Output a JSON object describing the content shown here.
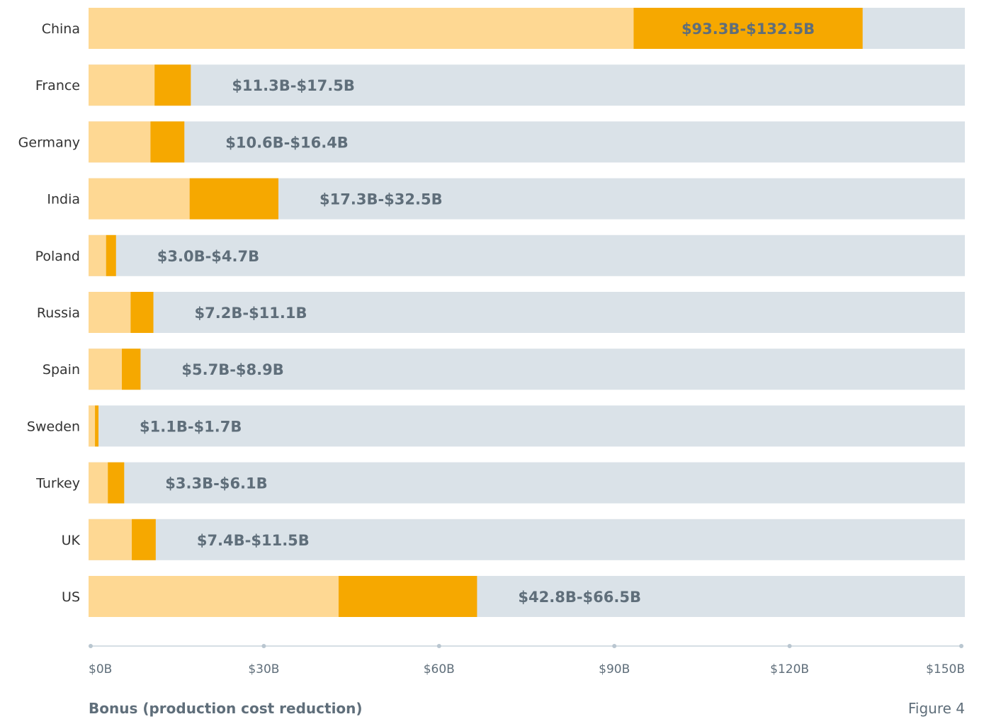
{
  "chart_data": {
    "type": "bar",
    "orientation": "horizontal",
    "stacked": true,
    "categories": [
      "China",
      "France",
      "Germany",
      "India",
      "Poland",
      "Russia",
      "Spain",
      "Sweden",
      "Turkey",
      "UK",
      "US"
    ],
    "series": [
      {
        "values": [
          93.3,
          11.3,
          10.6,
          17.3,
          3.0,
          7.2,
          5.7,
          1.1,
          3.3,
          7.4,
          42.8
        ],
        "color": "#fed893"
      },
      {
        "values": [
          39.2,
          6.2,
          5.8,
          15.2,
          1.7,
          3.9,
          3.2,
          0.6,
          2.8,
          4.1,
          23.7
        ],
        "color": "#f6a800"
      }
    ],
    "labels": [
      "$93.3B-$132.5B",
      "$11.3B-$17.5B",
      "$10.6B-$16.4B",
      "$17.3B-$32.5B",
      "$3.0B-$4.7B",
      "$7.2B-$11.1B",
      "$5.7B-$8.9B",
      "$1.1B-$1.7B",
      "$3.3B-$6.1B",
      "$7.4B-$11.5B",
      "$42.8B-$66.5B"
    ],
    "xlim": [
      0,
      150
    ],
    "xticks": [
      0,
      30,
      60,
      90,
      120,
      150
    ],
    "xtick_labels": [
      "$0B",
      "$30B",
      "$60B",
      "$90B",
      "$120B",
      "$150B"
    ],
    "background_color": "#dae2e8",
    "xlabel": "Bonus (production cost reduction)",
    "figure_label": "Figure 4",
    "grid": false,
    "legend": "none"
  }
}
